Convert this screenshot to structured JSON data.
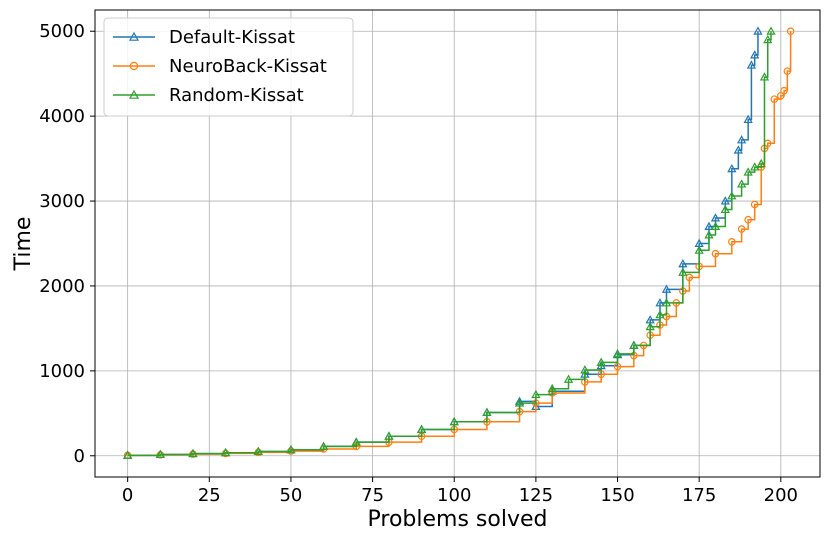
{
  "chart_data": {
    "type": "line",
    "title": "",
    "xlabel": "Problems solved",
    "ylabel": "Time",
    "xlim": [
      -10,
      212
    ],
    "ylim": [
      -250,
      5250
    ],
    "xticks": [
      0,
      25,
      50,
      75,
      100,
      125,
      150,
      175,
      200
    ],
    "yticks": [
      0,
      1000,
      2000,
      3000,
      4000,
      5000
    ],
    "grid": true,
    "legend_position": "top-left",
    "series": [
      {
        "name": "Default-Kissat",
        "color": "#1f77b4",
        "marker": "triangle",
        "x": [
          0,
          10,
          20,
          30,
          40,
          50,
          60,
          70,
          80,
          90,
          100,
          110,
          120,
          125,
          130,
          140,
          145,
          150,
          155,
          160,
          163,
          165,
          170,
          175,
          178,
          180,
          183,
          185,
          187,
          188,
          190,
          191,
          192,
          193
        ],
        "y": [
          5,
          15,
          25,
          35,
          50,
          70,
          110,
          160,
          230,
          310,
          400,
          510,
          640,
          580,
          760,
          960,
          1060,
          1190,
          1300,
          1600,
          1800,
          1960,
          2260,
          2500,
          2700,
          2800,
          3000,
          3380,
          3600,
          3720,
          3960,
          4600,
          4720,
          5000
        ]
      },
      {
        "name": "NeuroBack-Kissat",
        "color": "#ff7f0e",
        "marker": "circle",
        "x": [
          0,
          10,
          20,
          30,
          40,
          50,
          60,
          70,
          80,
          90,
          100,
          110,
          120,
          125,
          130,
          140,
          145,
          150,
          155,
          158,
          160,
          163,
          165,
          168,
          170,
          172,
          175,
          180,
          185,
          188,
          190,
          192,
          194,
          195,
          196,
          198,
          200,
          201,
          202,
          203
        ],
        "y": [
          5,
          12,
          20,
          28,
          40,
          55,
          80,
          110,
          160,
          230,
          310,
          400,
          520,
          620,
          740,
          870,
          960,
          1050,
          1180,
          1300,
          1420,
          1540,
          1640,
          1800,
          1940,
          2100,
          2230,
          2380,
          2520,
          2670,
          2780,
          2960,
          3400,
          3620,
          3680,
          4200,
          4240,
          4300,
          4530,
          5000
        ]
      },
      {
        "name": "Random-Kissat",
        "color": "#2ca02c",
        "marker": "triangle",
        "x": [
          0,
          10,
          20,
          30,
          40,
          50,
          60,
          70,
          80,
          90,
          100,
          110,
          120,
          125,
          130,
          135,
          140,
          145,
          150,
          155,
          160,
          163,
          165,
          170,
          175,
          178,
          180,
          183,
          185,
          188,
          190,
          192,
          194,
          195,
          196,
          197
        ],
        "y": [
          5,
          15,
          25,
          35,
          50,
          70,
          110,
          160,
          230,
          310,
          400,
          510,
          620,
          720,
          790,
          900,
          1010,
          1100,
          1200,
          1300,
          1520,
          1660,
          1800,
          2160,
          2420,
          2600,
          2700,
          2900,
          3060,
          3200,
          3340,
          3400,
          3440,
          4460,
          4900,
          5000
        ]
      }
    ]
  }
}
